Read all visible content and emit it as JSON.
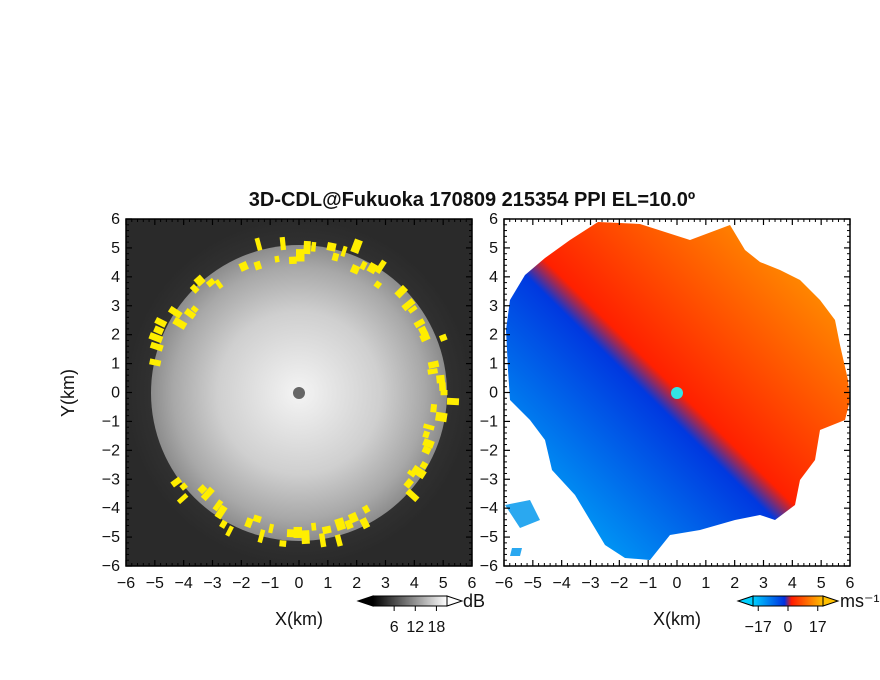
{
  "title": "3D-CDL@Fukuoka 170809 215354 PPI EL=10.0º",
  "chart_data": [
    {
      "type": "heatmap",
      "panel": "left",
      "quantity": "backscatter intensity",
      "xlabel": "X(km)",
      "ylabel": "Y(km)",
      "xlim": [
        -6,
        6
      ],
      "ylim": [
        -6,
        6
      ],
      "xticks": [
        "−6",
        "−5",
        "−4",
        "−3",
        "−2",
        "−1",
        "0",
        "1",
        "2",
        "3",
        "4",
        "5",
        "6"
      ],
      "yticks": [
        "6",
        "5",
        "4",
        "3",
        "2",
        "1",
        "0",
        "−1",
        "−2",
        "−3",
        "−4",
        "−5",
        "−6"
      ],
      "colorscale": "grayscale",
      "colorbar": {
        "unit": "dB",
        "ticks": [
          "6",
          "12",
          "18"
        ],
        "range": [
          0,
          21
        ]
      },
      "highlight_color": "#ffee00",
      "center_marker_color": "#666666",
      "echo_radius_km": 5.0
    },
    {
      "type": "heatmap",
      "panel": "right",
      "quantity": "Doppler velocity",
      "xlabel": "X(km)",
      "xlim": [
        -6,
        6
      ],
      "ylim": [
        -6,
        6
      ],
      "xticks": [
        "−6",
        "−5",
        "−4",
        "−3",
        "−2",
        "−1",
        "0",
        "1",
        "2",
        "3",
        "4",
        "5",
        "6"
      ],
      "colorscale": "blue-red diverging",
      "colorbar": {
        "unit": "ms⁻¹",
        "ticks": [
          "−17",
          "0",
          "17"
        ],
        "range": [
          -20,
          20
        ]
      },
      "center_marker_color": "#33e5e5"
    }
  ],
  "colors": {
    "axis": "#000000",
    "velocity_neg_far": "#00c8ff",
    "velocity_neg_near": "#0028d8",
    "velocity_pos_near": "#ff1400",
    "velocity_pos_far": "#ffb400"
  }
}
